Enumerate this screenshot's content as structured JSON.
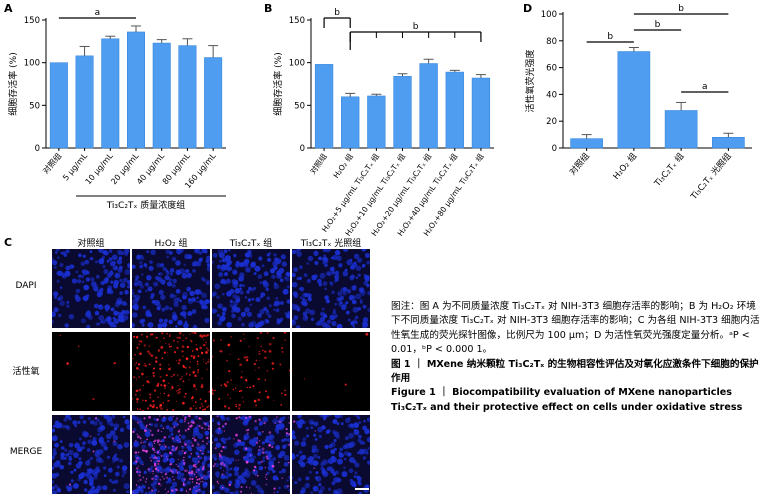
{
  "colors": {
    "bar": "#4f9df0",
    "bar_edge": "#2f7fd6",
    "err": "#555555",
    "axis": "#000000",
    "dapi": "#1a2fd0",
    "ros": "#ff2020"
  },
  "chart_data": [
    {
      "panel": "A",
      "type": "bar",
      "categories": [
        "对照组",
        "5 μg/mL",
        "10 μg/mL",
        "20 μg/mL",
        "40 μg/mL",
        "80 μg/mL",
        "160 μg/mL"
      ],
      "values": [
        100,
        108,
        128,
        136,
        123,
        120,
        106
      ],
      "errors": [
        0,
        11,
        3,
        7,
        4,
        8,
        14
      ],
      "ylabel": "细胞存活率 (%)",
      "xlabel": "Ti₃C₂Tₓ 质量浓度组",
      "yticks": [
        0,
        50,
        100,
        150
      ],
      "ylim": [
        0,
        150
      ],
      "annotations": [
        {
          "text": "a",
          "from": 0,
          "to": 3
        }
      ]
    },
    {
      "panel": "B",
      "type": "bar",
      "categories": [
        "对照组",
        "H₂O₂ 组",
        "H₂O₂+5 μg/mL Ti₃C₂Tₓ 组",
        "H₂O₂+10 μg/mL Ti₃C₂Tₓ 组",
        "H₂O₂+20 μg/mL Ti₃C₂Tₓ 组",
        "H₂O₂+40 μg/mL Ti₃C₂Tₓ 组",
        "H₂O₂+80 μg/mL Ti₃C₂Tₓ 组"
      ],
      "values": [
        98,
        60,
        61,
        84,
        99,
        89,
        82
      ],
      "errors": [
        0,
        4,
        2,
        3,
        5,
        2,
        4
      ],
      "ylabel": "细胞存活率 (%)",
      "yticks": [
        0,
        50,
        100,
        150
      ],
      "ylim": [
        0,
        150
      ],
      "annotations": [
        {
          "text": "b",
          "from": 0,
          "to": 1
        },
        {
          "text": "b",
          "from": 1,
          "to": 6
        }
      ]
    },
    {
      "panel": "D",
      "type": "bar",
      "categories": [
        "对照组",
        "H₂O₂ 组",
        "Ti₃C₂Tₓ 组",
        "Ti₃C₂Tₓ 光照组"
      ],
      "values": [
        7,
        72,
        28,
        8
      ],
      "errors": [
        3,
        3,
        6,
        3
      ],
      "ylabel": "活性氧荧光强度",
      "yticks": [
        0,
        20,
        40,
        60,
        80,
        100
      ],
      "ylim": [
        0,
        100
      ],
      "annotations": [
        {
          "text": "b",
          "from": 0,
          "to": 1
        },
        {
          "text": "b",
          "from": 1,
          "to": 2
        },
        {
          "text": "b",
          "from": 1,
          "to": 3
        },
        {
          "text": "a",
          "from": 2,
          "to": 3
        }
      ]
    }
  ],
  "panel_letters": {
    "a": "A",
    "b": "B",
    "c": "C",
    "d": "D"
  },
  "micrograph": {
    "columns": [
      "对照组",
      "H₂O₂ 组",
      "Ti₃C₂Tₓ 组",
      "Ti₃C₂Tₓ 光照组"
    ],
    "rows": [
      "DAPI",
      "活性氧",
      "MERGE"
    ],
    "ros_intensity": [
      0.02,
      0.9,
      0.35,
      0.01
    ]
  },
  "caption": {
    "note": "图注：图 A 为不同质量浓度 Ti₃C₂Tₓ 对 NIH-3T3 细胞存活率的影响；B 为 H₂O₂ 环境下不同质量浓度 Ti₃C₂Tₓ 对 NIH-3T3 细胞存活率的影响；C 为各组 NIH-3T3 细胞内活性氧生成的荧光探针图像，比例尺为 100 μm；D 为活性氧荧光强度定量分析。ᵃP < 0.01，ᵇP < 0.000 1。",
    "title_cn": "图 1 ｜ MXene 纳米颗粒 Ti₃C₂Tₓ 的生物相容性评估及对氧化应激条件下细胞的保护作用",
    "title_en": "Figure 1 ｜ Biocompatibility evaluation of MXene nanoparticles Ti₃C₂Tₓ and their protective effect on cells under oxidative stress"
  }
}
